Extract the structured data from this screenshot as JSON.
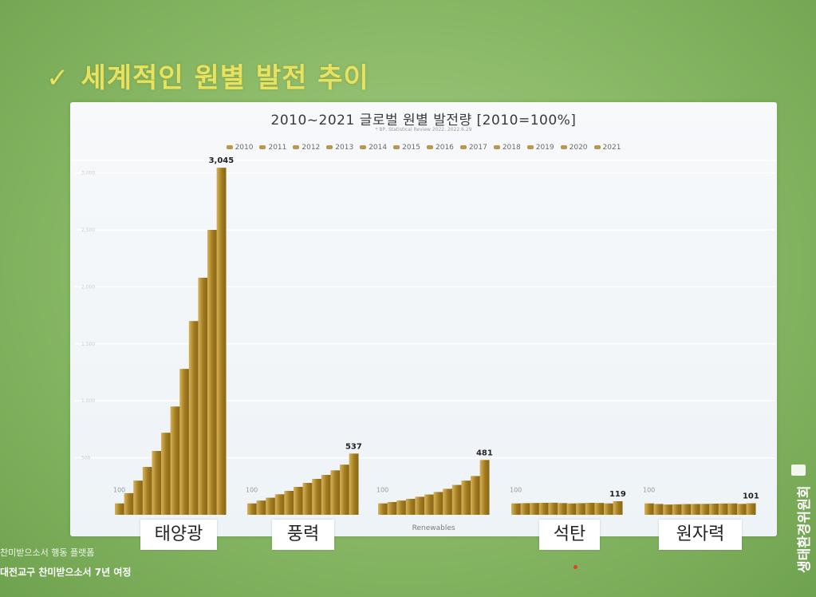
{
  "slide": {
    "heading": "세계적인 원별 발전 추이",
    "footer_line1": "찬미받으소서 행동 플랫폼",
    "footer_line2": "대전교구 찬미받으소서 7년 여정",
    "org_name": "생태환경위원회"
  },
  "chart_data": {
    "type": "bar",
    "title": "2010~2021 글로벌 원별 발전량 [2010=100%]",
    "source": "* BP, Statistical Review 2022, 2022.6.29",
    "legend": [
      "2010",
      "2011",
      "2012",
      "2013",
      "2014",
      "2015",
      "2016",
      "2017",
      "2018",
      "2019",
      "2020",
      "2021"
    ],
    "legend_position": "top",
    "ylim": [
      0,
      3200
    ],
    "yticks": [
      "500",
      "1,000",
      "1,500",
      "2,000",
      "2,500",
      "3,000"
    ],
    "ytick_values": [
      500,
      1000,
      1500,
      2000,
      2500,
      3000
    ],
    "grid": true,
    "start_label": "100",
    "categories": [
      "태양광",
      "풍력",
      "Renewables",
      "석탄",
      "원자력"
    ],
    "series": [
      {
        "values": [
          100,
          100,
          100,
          100,
          100
        ]
      },
      {
        "values": [
          190,
          125,
          112,
          102,
          95
        ]
      },
      {
        "values": [
          300,
          150,
          125,
          104,
          90
        ]
      },
      {
        "values": [
          420,
          180,
          140,
          105,
          92
        ]
      },
      {
        "values": [
          560,
          210,
          158,
          106,
          94
        ]
      },
      {
        "values": [
          720,
          245,
          178,
          103,
          95
        ]
      },
      {
        "values": [
          950,
          280,
          200,
          100,
          96
        ]
      },
      {
        "values": [
          1280,
          315,
          228,
          102,
          98
        ]
      },
      {
        "values": [
          1700,
          350,
          262,
          105,
          99
        ]
      },
      {
        "values": [
          2080,
          390,
          300,
          104,
          100
        ]
      },
      {
        "values": [
          2500,
          440,
          340,
          100,
          96
        ]
      },
      {
        "values": [
          3045,
          537,
          481,
          119,
          101
        ]
      }
    ],
    "end_labels": [
      "3,045",
      "537",
      "481",
      "119",
      "101"
    ],
    "category_boxes": [
      "태양광",
      "풍력",
      "석탄",
      "원자력"
    ],
    "axis_category_label": "Renewables",
    "colors": {
      "bar_dark": "#a07a1e",
      "bar_light": "#d6b35a",
      "legend_swatch": "#b8974f"
    }
  }
}
